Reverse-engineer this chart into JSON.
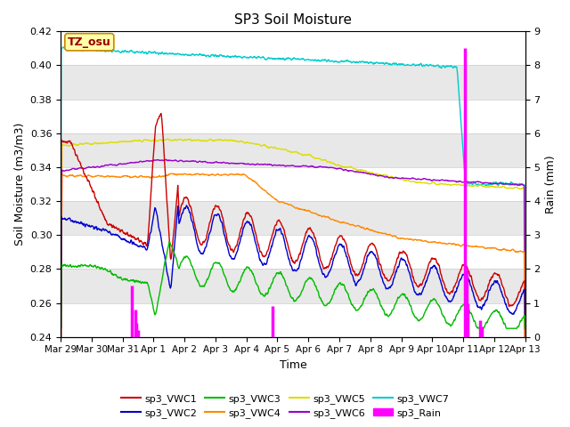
{
  "title": "SP3 Soil Moisture",
  "xlabel": "Time",
  "ylabel_left": "Soil Moisture (m3/m3)",
  "ylabel_right": "Rain (mm)",
  "ylim_left": [
    0.24,
    0.42
  ],
  "ylim_right": [
    0.0,
    9.0
  ],
  "yticks_left": [
    0.24,
    0.26,
    0.28,
    0.3,
    0.32,
    0.34,
    0.36,
    0.38,
    0.4,
    0.42
  ],
  "yticks_right": [
    0.0,
    1.0,
    2.0,
    3.0,
    4.0,
    5.0,
    6.0,
    7.0,
    8.0,
    9.0
  ],
  "xtick_labels": [
    "Mar 29",
    "Mar 30",
    "Mar 31",
    "Apr 1",
    "Apr 2",
    "Apr 3",
    "Apr 4",
    "Apr 5",
    "Apr 6",
    "Apr 7",
    "Apr 8",
    "Apr 9",
    "Apr 10",
    "Apr 11",
    "Apr 12",
    "Apr 13"
  ],
  "xtick_positions": [
    0,
    1,
    2,
    3,
    4,
    5,
    6,
    7,
    8,
    9,
    10,
    11,
    12,
    13,
    14,
    15
  ],
  "colors": {
    "VWC1": "#cc0000",
    "VWC2": "#0000cc",
    "VWC3": "#00bb00",
    "VWC4": "#ff8800",
    "VWC5": "#dddd00",
    "VWC6": "#9900cc",
    "VWC7": "#00cccc",
    "Rain": "#ff00ff"
  },
  "annotation_text": "TZ_osu",
  "bg_bands": [
    [
      0.4,
      0.42
    ],
    [
      0.36,
      0.38
    ],
    [
      0.32,
      0.34
    ],
    [
      0.28,
      0.3
    ],
    [
      0.24,
      0.26
    ]
  ],
  "bg_color_white": "#ffffff",
  "bg_color_gray": "#e8e8e8"
}
